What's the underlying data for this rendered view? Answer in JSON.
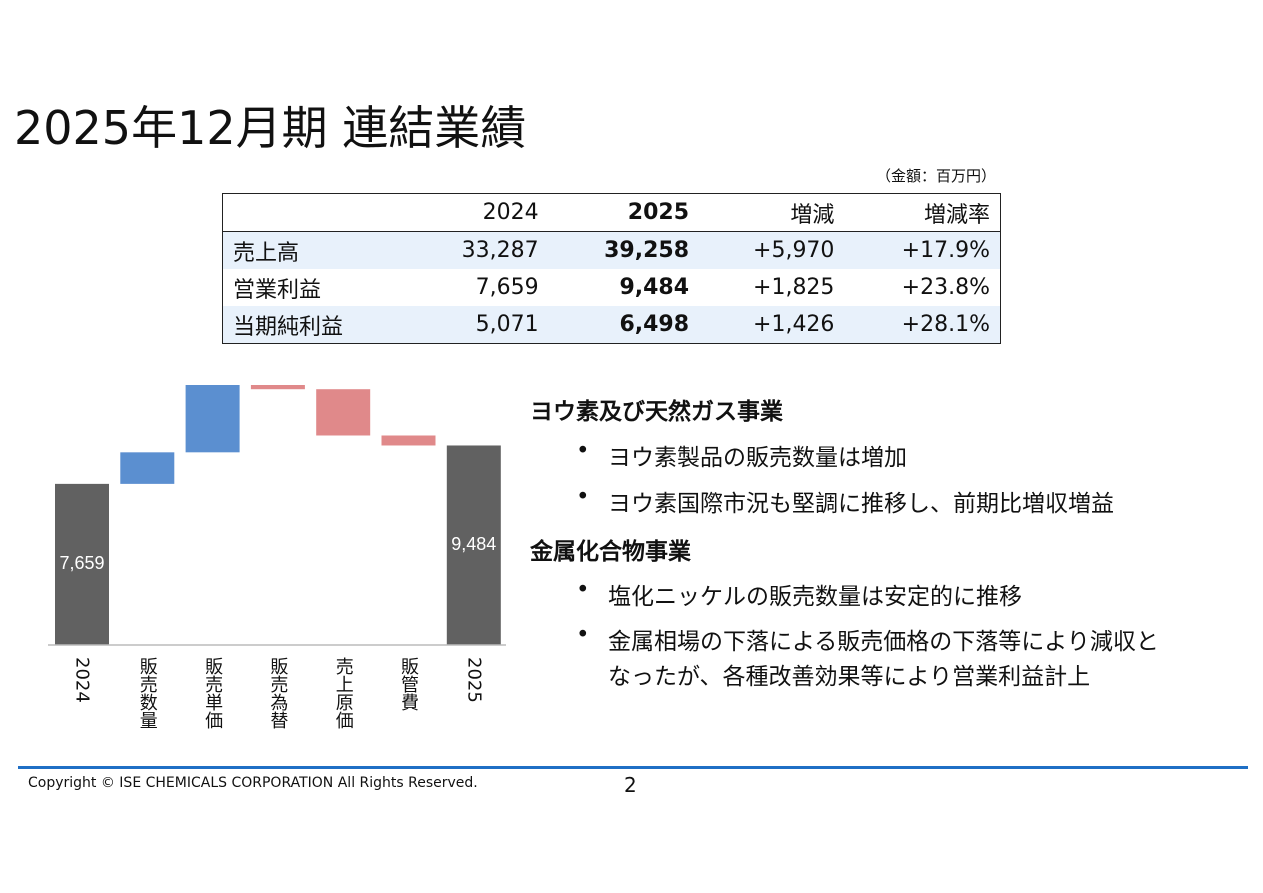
{
  "title": "2025年12月期 連結業績",
  "unit_note": "（金額：百万円）",
  "table": {
    "header": [
      "2024",
      "2025",
      "増減",
      "増減率"
    ],
    "rows": [
      {
        "label": "売上高",
        "cells": [
          "33,287",
          "39,258",
          "+5,970",
          "+17.9%"
        ]
      },
      {
        "label": "営業利益",
        "cells": [
          "7,659",
          "9,484",
          "+1,825",
          "+23.8%"
        ]
      },
      {
        "label": "当期純利益",
        "cells": [
          "5,071",
          "6,498",
          "+1,426",
          "+28.1%"
        ]
      }
    ]
  },
  "chart_data": {
    "type": "waterfall",
    "categories": [
      "2024",
      "販売数量",
      "販売単価",
      "販売為替",
      "売上原価",
      "販管費",
      "2025"
    ],
    "values": [
      7659,
      1500,
      3200,
      -200,
      -2200,
      -475,
      9484
    ],
    "value_labels": [
      "7,659",
      null,
      null,
      null,
      null,
      null,
      "9,484"
    ],
    "totals": [
      true,
      false,
      false,
      false,
      false,
      false,
      true
    ],
    "colors": {
      "total": "#616161",
      "increase": "#5b8fd0",
      "decrease": "#e0898a"
    }
  },
  "sections": [
    {
      "heading": "ヨウ素及び天然ガス事業",
      "bullets": [
        [
          "ヨウ素製品の販売数量は増加"
        ],
        [
          "ヨウ素国際市況も堅調に推移し、前期比増収増益"
        ]
      ]
    },
    {
      "heading": "金属化合物事業",
      "bullets": [
        [
          "塩化ニッケルの販売数量は安定的に推移"
        ],
        [
          "金属相場の下落による販売価格の下落等により減収と",
          "なったが、各種改善効果等により営業利益計上"
        ]
      ]
    }
  ],
  "footer": {
    "copyright": "Copyright © ISE CHEMICALS CORPORATION  All Rights Reserved.",
    "page": "2"
  }
}
